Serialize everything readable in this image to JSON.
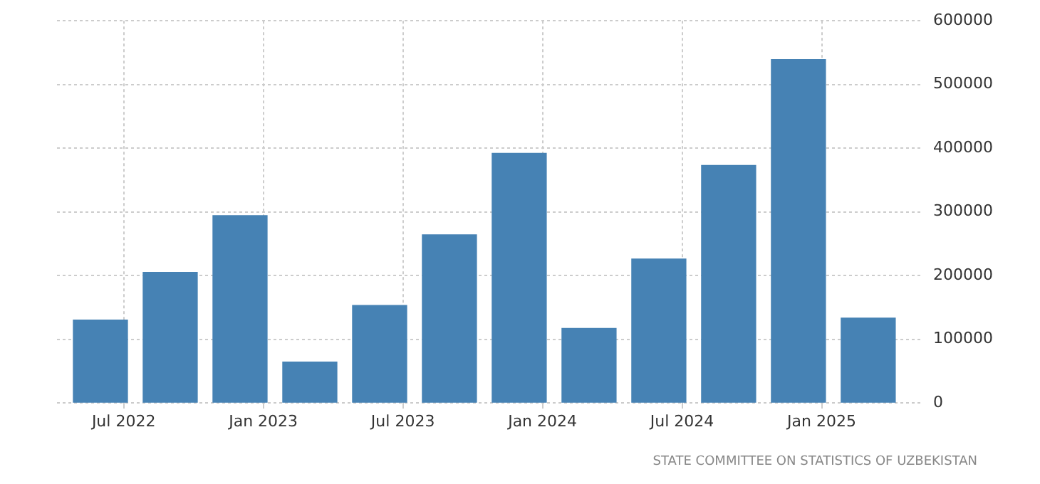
{
  "chart_data": {
    "type": "bar",
    "x": [
      "2022-06",
      "2022-09",
      "2022-12",
      "2023-03",
      "2023-06",
      "2023-09",
      "2023-12",
      "2024-03",
      "2024-06",
      "2024-09",
      "2024-12",
      "2025-03"
    ],
    "values": [
      130000,
      205000,
      294000,
      64000,
      153000,
      264000,
      392000,
      117000,
      226000,
      373000,
      539000,
      133000
    ],
    "color": "#4682b4",
    "xlim": [
      "2022-04-05",
      "2025-05-10"
    ],
    "xticks": [
      {
        "value": "2022-07",
        "label": "Jul 2022"
      },
      {
        "value": "2023-01",
        "label": "Jan 2023"
      },
      {
        "value": "2023-07",
        "label": "Jul 2023"
      },
      {
        "value": "2024-01",
        "label": "Jan 2024"
      },
      {
        "value": "2024-07",
        "label": "Jul 2024"
      },
      {
        "value": "2025-01",
        "label": "Jan 2025"
      }
    ],
    "ylim": [
      0,
      600000
    ],
    "yticks": [
      0,
      100000,
      200000,
      300000,
      400000,
      500000,
      600000
    ],
    "grid": true,
    "annotations": [
      "STATE COMMITTEE ON STATISTICS OF UZBEKISTAN"
    ]
  }
}
